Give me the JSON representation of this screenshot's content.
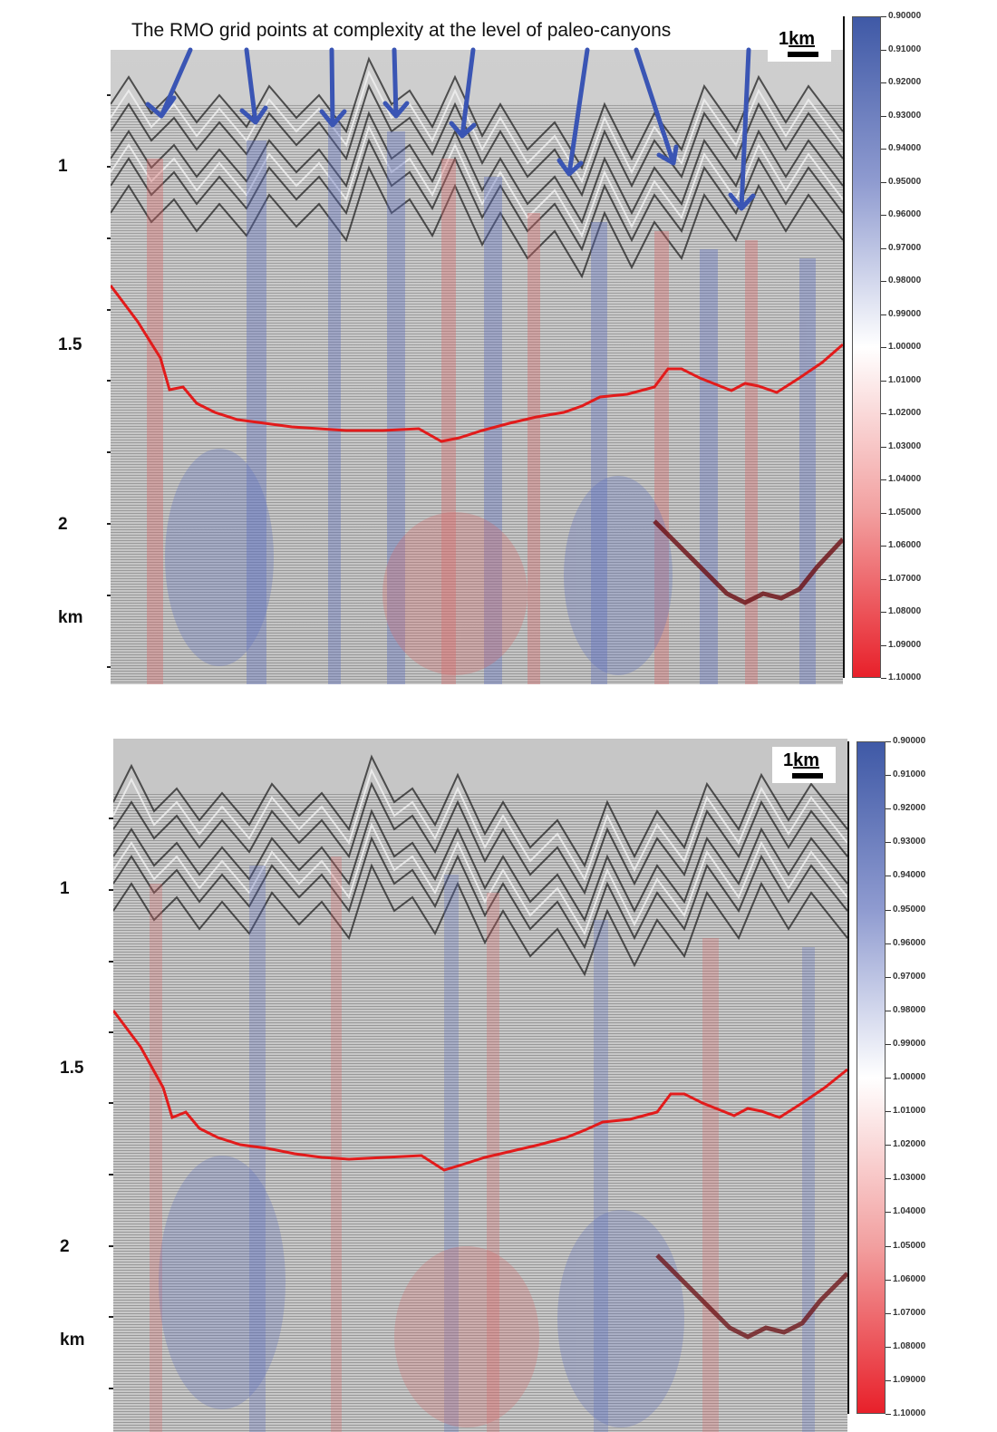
{
  "top_panel": {
    "caption": "The RMO grid points at complexity at the level of paleo-canyons",
    "scale_label_num": "1",
    "scale_label_unit": "km",
    "depth_labels": [
      "1",
      "1.5",
      "2",
      "km"
    ],
    "arrow_color": "#3a55b4",
    "horizon_color": "#e21b1b"
  },
  "bottom_panel": {
    "scale_label_num": "1",
    "scale_label_unit": "km",
    "depth_labels": [
      "1",
      "1.5",
      "2",
      "km"
    ],
    "horizon_color": "#e21b1b"
  },
  "colorbar": {
    "labels": [
      "0.90000",
      "0.91000",
      "0.92000",
      "0.93000",
      "0.94000",
      "0.95000",
      "0.96000",
      "0.97000",
      "0.98000",
      "0.99000",
      "1.00000",
      "1.01000",
      "1.02000",
      "1.03000",
      "1.04000",
      "1.05000",
      "1.06000",
      "1.07000",
      "1.08000",
      "1.09000",
      "1.10000"
    ],
    "min_color": "#3f59a6",
    "mid_color": "#ffffff",
    "max_color": "#e8202a"
  }
}
